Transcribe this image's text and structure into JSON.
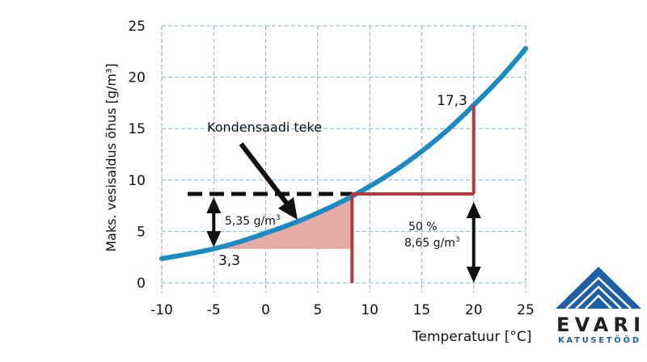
{
  "chart_data": {
    "type": "line",
    "xlabel": "Temperatuur [°C]",
    "ylabel": "Maks. vesisaldus õhus [g/m³]",
    "xlim": [
      -10,
      25
    ],
    "ylim": [
      0,
      25
    ],
    "x_ticks": [
      "-10",
      "-5",
      "0",
      "5",
      "10",
      "15",
      "20",
      "25"
    ],
    "y_ticks": [
      "0",
      "5",
      "10",
      "15",
      "20",
      "25"
    ],
    "grid": true,
    "series": [
      {
        "x": [
          -10,
          -5,
          0,
          5,
          10,
          15,
          20,
          25
        ],
        "y": [
          2.36,
          3.3,
          4.85,
          6.8,
          9.4,
          12.8,
          17.3,
          22.8
        ],
        "color": "#1a8bc4"
      }
    ],
    "dewpoint_line": {
      "x": [
        -10,
        8.3
      ],
      "y": 8.65,
      "style": "dashed",
      "color": "#111111"
    },
    "reference_lines": {
      "x_room": 20,
      "x_dew": 8.3,
      "y_top": 17.3,
      "color": "#b5393d"
    },
    "shaded_region": {
      "x": [
        -5,
        8.3
      ],
      "y_bottom": 3.3,
      "color": "#e3ada3"
    },
    "annotations": {
      "condensation": "Kondensaadi teke",
      "difference": "5,35 g/m",
      "difference_sup": "3",
      "value_low": "3,3",
      "value_high": "17,3",
      "rh": "50 %",
      "rh_amount": "8,65 g/m",
      "rh_amount_sup": "3"
    }
  },
  "logo": {
    "name": "EVARI",
    "subtitle": "KATUSETÖÖD",
    "color": "#1f5fa8"
  }
}
